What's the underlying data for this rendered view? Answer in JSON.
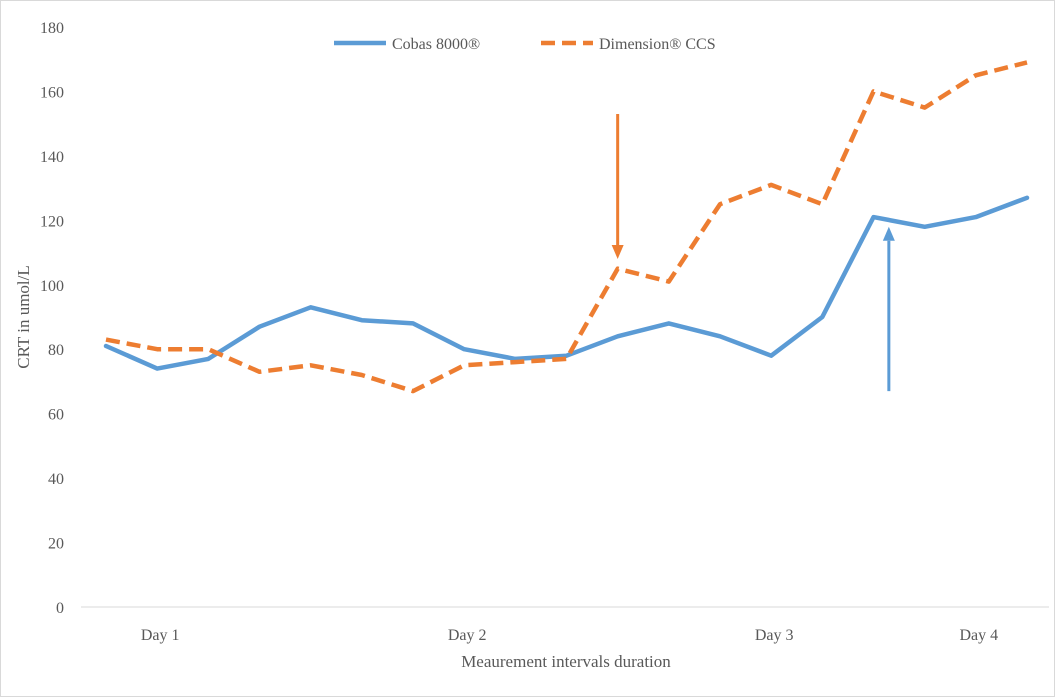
{
  "chart_data": {
    "type": "line",
    "title": "",
    "xlabel": "Meaurement  intervals duration",
    "ylabel": "CRT in umol/L",
    "ylim": [
      0,
      180
    ],
    "yticks": [
      0,
      20,
      40,
      60,
      80,
      100,
      120,
      140,
      160,
      180
    ],
    "grid": false,
    "legend_position": "top-center",
    "points_count": 19,
    "category_labels": [
      {
        "index": 1,
        "label": "Day 1"
      },
      {
        "index": 7,
        "label": "Day 2"
      },
      {
        "index": 13,
        "label": "Day 3"
      },
      {
        "index": 17,
        "label": "Day 4"
      }
    ],
    "series": [
      {
        "name": "Cobas 8000®",
        "color": "#5b9bd5",
        "style": "solid",
        "values": [
          81,
          74,
          77,
          87,
          93,
          89,
          88,
          80,
          77,
          78,
          84,
          88,
          84,
          78,
          90,
          121,
          118,
          121,
          127
        ]
      },
      {
        "name": "Dimension® CCS",
        "color": "#ed7d31",
        "style": "dashed",
        "values": [
          83,
          80,
          80,
          73,
          75,
          72,
          67,
          75,
          76,
          77,
          105,
          101,
          125,
          131,
          125,
          160,
          155,
          165,
          169
        ]
      }
    ],
    "annotations": [
      {
        "type": "arrow",
        "color": "#ed7d31",
        "direction": "down",
        "at_index": 10,
        "from_value": 153,
        "to_value": 108
      },
      {
        "type": "arrow",
        "color": "#5b9bd5",
        "direction": "up",
        "at_index": 15.3,
        "from_value": 67,
        "to_value": 118
      }
    ]
  }
}
